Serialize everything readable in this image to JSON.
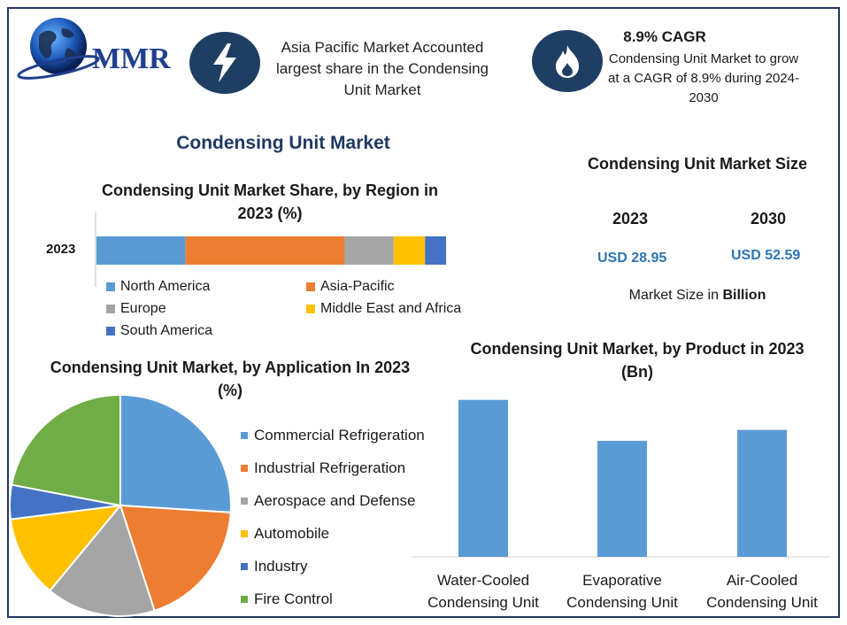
{
  "header": {
    "logo_text": "MMR",
    "region_note": "Asia Pacific Market Accounted largest share in the Condensing Unit Market",
    "cagr_title": "8.9% CAGR",
    "cagr_text": "Condensing Unit Market to grow at a CAGR of 8.9% during 2024-2030"
  },
  "main_title": "Condensing Unit Market",
  "market_size": {
    "title": "Condensing Unit Market Size",
    "year_a": "2023",
    "year_b": "2030",
    "value_a": "USD 28.95",
    "value_b": "USD 52.59",
    "note_prefix": "Market Size in ",
    "note_bold": "Billion"
  },
  "icons": {
    "header_left": "lightning-icon",
    "header_right": "flame-icon"
  },
  "chart_data": [
    {
      "type": "bar",
      "orientation": "horizontal-stacked",
      "title": "Condensing Unit Market Share, by Region in 2023 (%)",
      "categories": [
        "2023"
      ],
      "xlim": [
        0,
        100
      ],
      "series": [
        {
          "name": "North America",
          "values": [
            25.5
          ],
          "color": "#5b9bd5"
        },
        {
          "name": "Asia-Pacific",
          "values": [
            45.5
          ],
          "color": "#ed7d31"
        },
        {
          "name": "Europe",
          "values": [
            14
          ],
          "color": "#a5a5a5"
        },
        {
          "name": "Middle East and Africa",
          "values": [
            9
          ],
          "color": "#ffc000"
        },
        {
          "name": "South America",
          "values": [
            6
          ],
          "color": "#4472c4"
        }
      ],
      "legend": "bottom"
    },
    {
      "type": "pie",
      "title": "Condensing Unit Market, by Application In 2023 (%)",
      "slices": [
        {
          "name": "Commercial Refrigeration",
          "value": 26,
          "color": "#5b9bd5"
        },
        {
          "name": "Industrial Refrigeration",
          "value": 19,
          "color": "#ed7d31"
        },
        {
          "name": "Aerospace and Defense",
          "value": 16,
          "color": "#a5a5a5"
        },
        {
          "name": "Automobile",
          "value": 12,
          "color": "#ffc000"
        },
        {
          "name": "Industry",
          "value": 5,
          "color": "#4472c4"
        },
        {
          "name": "Fire Control",
          "value": 22,
          "color": "#70ad47"
        }
      ],
      "legend": "right"
    },
    {
      "type": "bar",
      "title": "Condensing Unit Market, by Product in 2023 (Bn)",
      "categories": [
        "Water-Cooled Condensing Unit",
        "Evaporative Condensing Unit",
        "Air-Cooled Condensing Unit"
      ],
      "values": [
        11.5,
        8.5,
        9.3
      ],
      "ylim": [
        0,
        12
      ],
      "color": "#5b9bd5"
    }
  ]
}
